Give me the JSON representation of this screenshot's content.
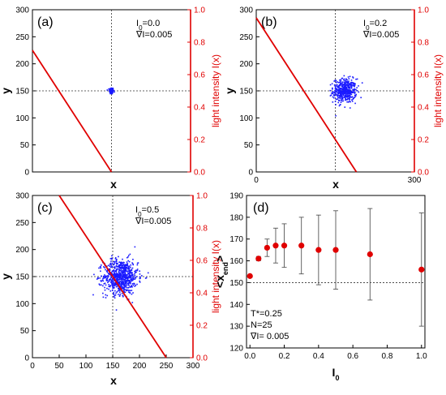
{
  "colors": {
    "light": "#e00000",
    "particles": "#1a1aff",
    "markers": "#e00000",
    "errorbars": "#555555",
    "guides": "#333333"
  },
  "chart_data": [
    {
      "id": "a",
      "type": "scatter",
      "panel_label": "(a)",
      "annotations": [
        "I₀=0.0",
        "∇I=0.005"
      ],
      "xlabel": "x",
      "ylabel": "y",
      "ylabel_right": "light intensity I(x)",
      "xlim": [
        0,
        300
      ],
      "ylim": [
        0,
        300
      ],
      "y2lim": [
        0.0,
        1.0
      ],
      "xticks": [],
      "yticks": [
        0,
        50,
        100,
        150,
        200,
        250,
        300
      ],
      "y2ticks": [
        0.0,
        0.2,
        0.4,
        0.6,
        0.8,
        1.0
      ],
      "guide_x": 150,
      "guide_y": 150,
      "cluster": {
        "center": [
          150,
          150
        ],
        "spread": [
          2,
          3
        ],
        "count": 120
      },
      "light_line": {
        "x": [
          0,
          150
        ],
        "y2": [
          0.75,
          0.0
        ]
      }
    },
    {
      "id": "b",
      "type": "scatter",
      "panel_label": "(b)",
      "annotations": [
        "I₀=0.2",
        "∇I=0.005"
      ],
      "xlabel": "x",
      "ylabel": "y",
      "ylabel_right": "light intensity I(x)",
      "xlim": [
        0,
        300
      ],
      "ylim": [
        0,
        300
      ],
      "y2lim": [
        0.0,
        1.0
      ],
      "xticks": [
        0,
        300
      ],
      "yticks": [
        0,
        50,
        100,
        150,
        200,
        250,
        300
      ],
      "y2ticks": [
        0.0,
        0.2,
        0.4,
        0.6,
        0.8,
        1.0
      ],
      "guide_x": 150,
      "guide_y": 150,
      "cluster": {
        "center": [
          168,
          150
        ],
        "spread": [
          11,
          11
        ],
        "count": 450
      },
      "light_line": {
        "x": [
          0,
          190
        ],
        "y2": [
          0.95,
          0.0
        ]
      }
    },
    {
      "id": "c",
      "type": "scatter",
      "panel_label": "(c)",
      "annotations": [
        "I₀=0.5",
        "∇I=0.005"
      ],
      "xlabel": "x",
      "ylabel": "y",
      "ylabel_right": "light intensity I(x)",
      "xlim": [
        0,
        300
      ],
      "ylim": [
        0,
        300
      ],
      "y2lim": [
        0.0,
        1.0
      ],
      "xticks": [
        0,
        50,
        100,
        150,
        200,
        250,
        300
      ],
      "yticks": [
        0,
        50,
        100,
        150,
        200,
        250,
        300
      ],
      "y2ticks": [
        0.0,
        0.2,
        0.4,
        0.6,
        0.8,
        1.0
      ],
      "guide_x": 150,
      "guide_y": 150,
      "cluster": {
        "center": [
          165,
          150
        ],
        "spread": [
          16,
          16
        ],
        "count": 750
      },
      "light_line": {
        "x": [
          50,
          250
        ],
        "y2": [
          1.0,
          0.0
        ]
      }
    },
    {
      "id": "d",
      "type": "scatter",
      "panel_label": "(d)",
      "annotations": [
        "T*=0.25",
        "N=25",
        "∇I= 0.005"
      ],
      "xlabel": "I₀",
      "ylabel": "<x_end>",
      "xlim": [
        -0.02,
        1.02
      ],
      "ylim": [
        120,
        190
      ],
      "xticks": [
        0.0,
        0.2,
        0.4,
        0.6,
        0.8,
        1.0
      ],
      "yticks": [
        120,
        130,
        140,
        150,
        160,
        170,
        180,
        190
      ],
      "guide_y": 150,
      "x": [
        0.0,
        0.05,
        0.1,
        0.15,
        0.2,
        0.3,
        0.4,
        0.5,
        0.7,
        1.0
      ],
      "y": [
        153,
        161,
        166,
        167,
        167,
        167,
        165,
        165,
        163,
        156
      ],
      "err": [
        0,
        1,
        4,
        8,
        10,
        13,
        16,
        18,
        21,
        26
      ]
    }
  ]
}
